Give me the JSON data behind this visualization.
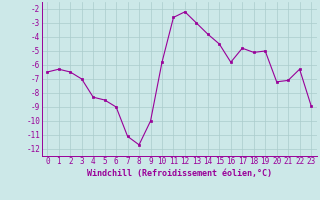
{
  "x": [
    0,
    1,
    2,
    3,
    4,
    5,
    6,
    7,
    8,
    9,
    10,
    11,
    12,
    13,
    14,
    15,
    16,
    17,
    18,
    19,
    20,
    21,
    22,
    23
  ],
  "y": [
    -6.5,
    -6.3,
    -6.5,
    -7.0,
    -8.3,
    -8.5,
    -9.0,
    -11.1,
    -11.7,
    -10.0,
    -5.8,
    -2.6,
    -2.2,
    -3.0,
    -3.8,
    -4.5,
    -5.8,
    -4.8,
    -5.1,
    -5.0,
    -7.2,
    -7.1,
    -6.3,
    -8.9
  ],
  "xlabel": "Windchill (Refroidissement éolien,°C)",
  "ylim": [
    -12.5,
    -1.5
  ],
  "xlim": [
    -0.5,
    23.5
  ],
  "yticks": [
    -2,
    -3,
    -4,
    -5,
    -6,
    -7,
    -8,
    -9,
    -10,
    -11,
    -12
  ],
  "xticks": [
    0,
    1,
    2,
    3,
    4,
    5,
    6,
    7,
    8,
    9,
    10,
    11,
    12,
    13,
    14,
    15,
    16,
    17,
    18,
    19,
    20,
    21,
    22,
    23
  ],
  "line_color": "#990099",
  "marker": "s",
  "marker_size": 2.0,
  "bg_color": "#cce8e8",
  "grid_color": "#aacccc",
  "xlabel_fontsize": 6.0,
  "tick_fontsize": 5.5
}
